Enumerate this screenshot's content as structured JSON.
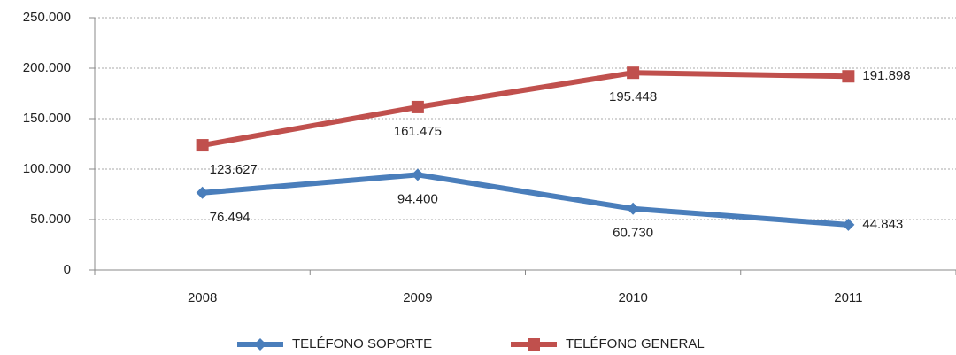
{
  "chart_data": {
    "type": "line",
    "categories": [
      "2008",
      "2009",
      "2010",
      "2011"
    ],
    "series": [
      {
        "name": "TELÉFONO SOPORTE",
        "color": "#4a7ebb",
        "marker": "diamond",
        "values": [
          76494,
          94400,
          60730,
          44843
        ],
        "value_labels": [
          "76.494",
          "94.400",
          "60.730",
          "44.843"
        ]
      },
      {
        "name": "TELÉFONO GENERAL",
        "color": "#c0504d",
        "marker": "square",
        "values": [
          123627,
          161475,
          195448,
          191898
        ],
        "value_labels": [
          "123.627",
          "161.475",
          "195.448",
          "191.898"
        ]
      }
    ],
    "ylim": [
      0,
      250000
    ],
    "yticks": [
      0,
      {
        "value": 50000,
        "label": "50.000"
      },
      {
        "value": 100000,
        "label": "100.000"
      },
      {
        "value": 150000,
        "label": "150.000"
      },
      {
        "value": 200000,
        "label": "200.000"
      },
      {
        "value": 250000,
        "label": "250.000"
      }
    ],
    "grid": true,
    "legend": "bottom"
  }
}
